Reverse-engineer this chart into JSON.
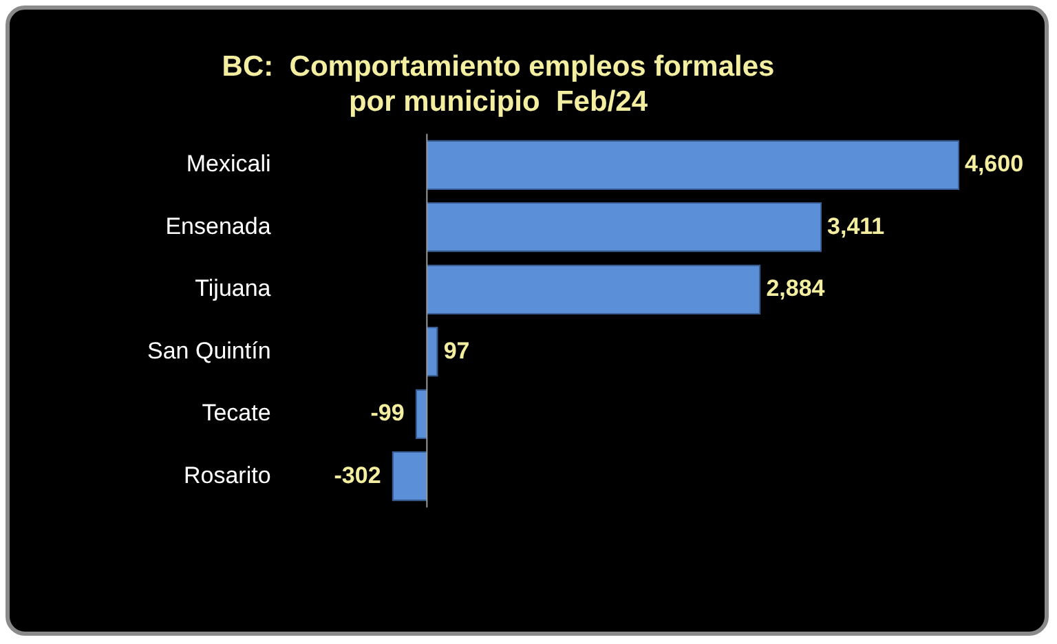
{
  "chart_data": {
    "type": "bar",
    "orientation": "horizontal",
    "title": "BC:  Comportamiento empleos formales\npor municipio  Feb/24",
    "categories": [
      "Mexicali",
      "Ensenada",
      "Tijuana",
      "San Quintín",
      "Tecate",
      "Rosarito"
    ],
    "values": [
      4600,
      3411,
      2884,
      97,
      -99,
      -302
    ],
    "value_labels": [
      "4,600",
      "3,411",
      "2,884",
      "97",
      "-99",
      "-302"
    ],
    "color": "#5b8fd8",
    "legend": false
  }
}
